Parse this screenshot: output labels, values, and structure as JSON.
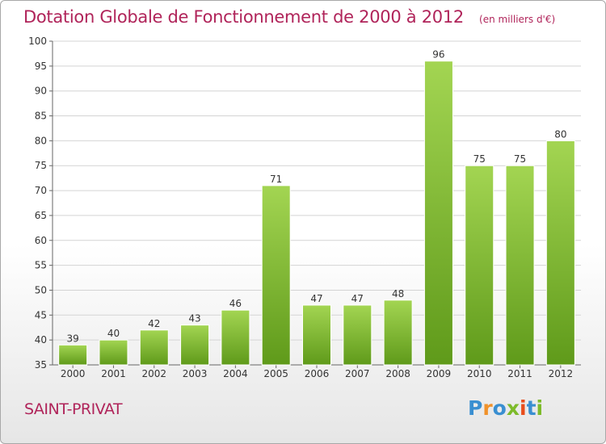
{
  "header": {
    "title": "Dotation Globale de Fonctionnement de 2000 à 2012",
    "subtitle": "(en milliers d'€)"
  },
  "footer": {
    "city": "SAINT-PRIVAT",
    "logo_text": "Proxiti",
    "logo_colors": [
      "#3a8fd1",
      "#f0922b",
      "#3a8fd1",
      "#7dbb2a",
      "#e84d1c",
      "#3a8fd1",
      "#7dbb2a"
    ]
  },
  "colors": {
    "bar_light": "#a3d552",
    "bar_dark": "#5f9a1a",
    "accent": "#b0245a"
  },
  "chart_data": {
    "type": "bar",
    "categories": [
      "2000",
      "2001",
      "2002",
      "2003",
      "2004",
      "2005",
      "2006",
      "2007",
      "2008",
      "2009",
      "2010",
      "2011",
      "2012"
    ],
    "values": [
      39,
      40,
      42,
      43,
      46,
      71,
      47,
      47,
      48,
      96,
      75,
      75,
      80
    ],
    "ylim": [
      35,
      100
    ],
    "yticks": [
      35,
      40,
      45,
      50,
      55,
      60,
      65,
      70,
      75,
      80,
      85,
      90,
      95,
      100
    ],
    "grid": true,
    "xlabel": "",
    "ylabel": ""
  }
}
